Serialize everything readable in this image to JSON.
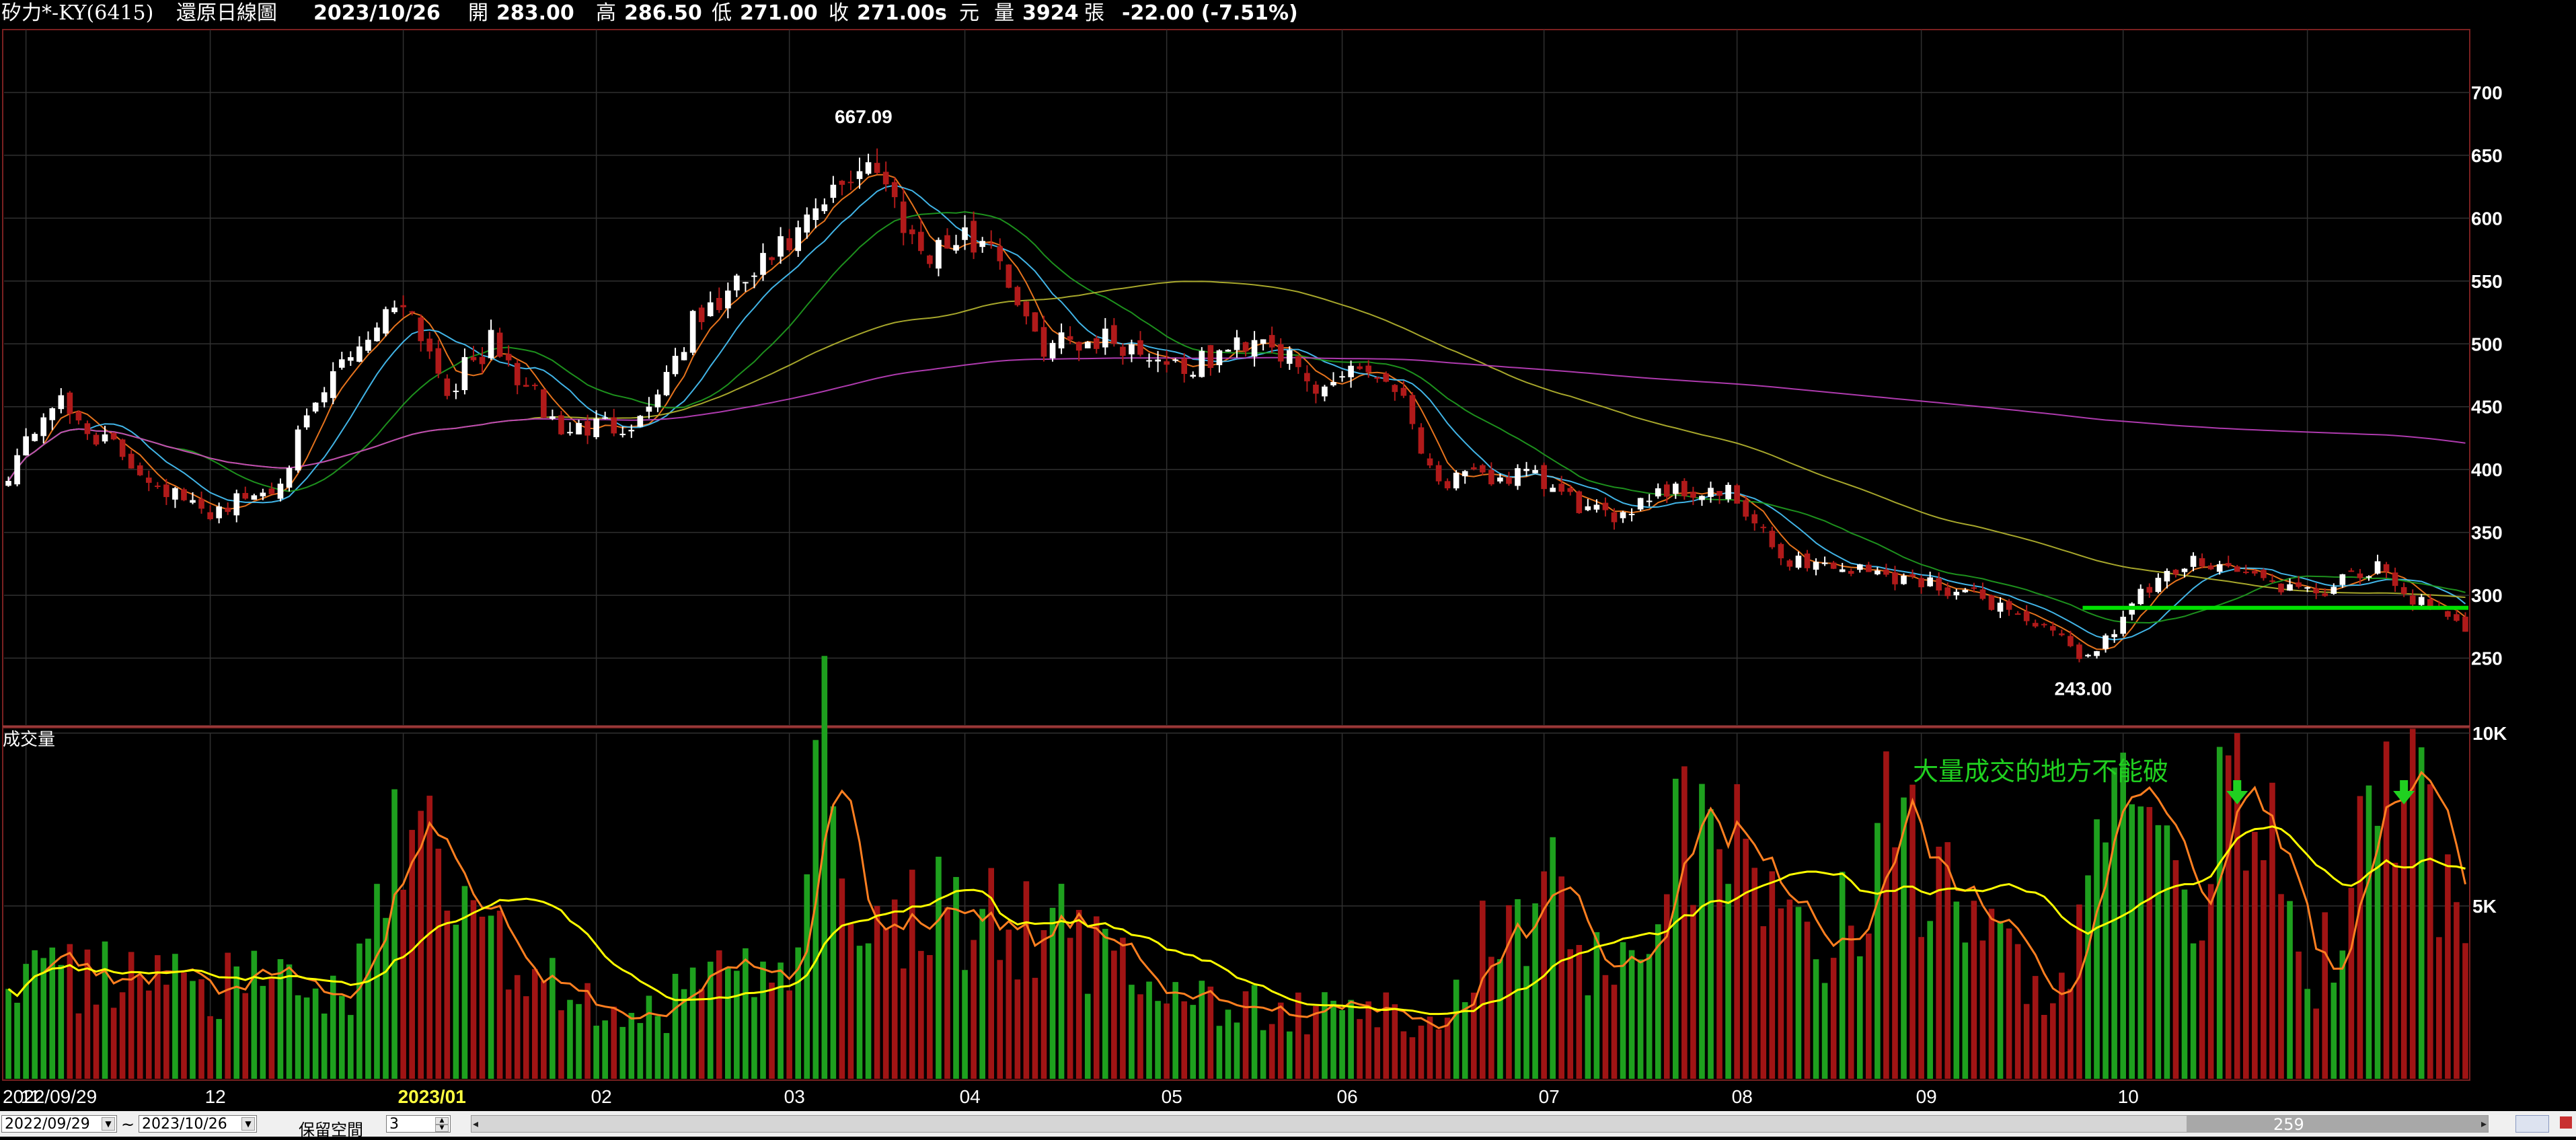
{
  "header": {
    "stock": "矽力*-KY(6415)",
    "chart_name": "還原日線圖",
    "date": "2023/10/26",
    "open_label": "開",
    "open": "283.00",
    "high_label": "高",
    "high": "286.50",
    "low_label": "低",
    "low": "271.00",
    "close_label": "收",
    "close": "271.00",
    "close_flag": "s",
    "unit": "元",
    "volume_label": "量",
    "volume": "3924",
    "volume_unit": "張",
    "change": "-22.00 (-7.51%)"
  },
  "volume_panel": {
    "title": "成交量",
    "annotation": "大量成交的地方不能破"
  },
  "footer": {
    "start_date": "2022/09/29",
    "tilde": "~",
    "end_date": "2023/10/26",
    "keep_space_label": "保留空間",
    "keep_space_value": "3",
    "bar_count": "259"
  },
  "colors": {
    "background": "#000000",
    "up": "#ffffff",
    "down": "#b01a1a",
    "volume_up": "#1ea01e",
    "volume_down": "#a01414",
    "ma_short": "#ff7f20",
    "ma_mid": "#48c8ff",
    "ma_long": "#20a020",
    "ma_quarter": "#b8b830",
    "ma_year": "#c040c0",
    "support_line": "#00e000",
    "vol_ma_short": "#ff7f20",
    "vol_ma_long": "#ffff00"
  },
  "chart_data": [
    {
      "type": "candlestick",
      "title": "",
      "x_ticks": [
        "2022/09/29",
        "11",
        "12",
        "2023/01",
        "02",
        "03",
        "04",
        "05",
        "06",
        "07",
        "08",
        "09",
        "10"
      ],
      "y_ticks": [
        250,
        300,
        350,
        400,
        450,
        500,
        550,
        600,
        650,
        700
      ],
      "ylim": [
        200,
        750
      ],
      "annotations": [
        {
          "text": "667.09",
          "date": "2023/02/14",
          "value": 667.09
        },
        {
          "text": "243.00",
          "date": "2023/08/28",
          "value": 243.0
        }
      ],
      "support_line": {
        "value": 290,
        "from": "2023/08/28",
        "to": "2023/10/26"
      },
      "anchors": [
        {
          "date": "2022/09/29",
          "close": 400
        },
        {
          "date": "2022/10/06",
          "close": 455
        },
        {
          "date": "2022/10/20",
          "close": 400
        },
        {
          "date": "2022/10/31",
          "close": 365
        },
        {
          "date": "2022/11/10",
          "close": 385
        },
        {
          "date": "2022/11/22",
          "close": 485
        },
        {
          "date": "2022/12/01",
          "close": 540
        },
        {
          "date": "2022/12/08",
          "close": 465
        },
        {
          "date": "2022/12/15",
          "close": 500
        },
        {
          "date": "2022/12/27",
          "close": 430
        },
        {
          "date": "2023/01/09",
          "close": 440
        },
        {
          "date": "2023/01/17",
          "close": 515
        },
        {
          "date": "2023/02/02",
          "close": 585
        },
        {
          "date": "2023/02/14",
          "close": 650
        },
        {
          "date": "2023/02/22",
          "close": 575
        },
        {
          "date": "2023/03/06",
          "close": 585
        },
        {
          "date": "2023/03/13",
          "close": 500
        },
        {
          "date": "2023/03/23",
          "close": 505
        },
        {
          "date": "2023/04/06",
          "close": 480
        },
        {
          "date": "2023/04/18",
          "close": 510
        },
        {
          "date": "2023/04/26",
          "close": 460
        },
        {
          "date": "2023/05/02",
          "close": 485
        },
        {
          "date": "2023/05/09",
          "close": 470
        },
        {
          "date": "2023/05/16",
          "close": 390
        },
        {
          "date": "2023/05/30",
          "close": 395
        },
        {
          "date": "2023/06/12",
          "close": 360
        },
        {
          "date": "2023/06/20",
          "close": 385
        },
        {
          "date": "2023/06/30",
          "close": 380
        },
        {
          "date": "2023/07/10",
          "close": 330
        },
        {
          "date": "2023/07/21",
          "close": 320
        },
        {
          "date": "2023/08/02",
          "close": 310
        },
        {
          "date": "2023/08/15",
          "close": 290
        },
        {
          "date": "2023/08/28",
          "close": 250
        },
        {
          "date": "2023/09/05",
          "close": 300
        },
        {
          "date": "2023/09/14",
          "close": 330
        },
        {
          "date": "2023/09/22",
          "close": 315
        },
        {
          "date": "2023/10/02",
          "close": 300
        },
        {
          "date": "2023/10/12",
          "close": 320
        },
        {
          "date": "2023/10/19",
          "close": 293
        },
        {
          "date": "2023/10/26",
          "close": 271
        }
      ],
      "last_bar": {
        "date": "2023/10/26",
        "open": 283.0,
        "high": 286.5,
        "low": 271.0,
        "close": 271.0
      }
    },
    {
      "type": "bar",
      "title": "成交量",
      "y_ticks": [
        "5K",
        "10K"
      ],
      "ylim": [
        0,
        10000
      ],
      "anchors": [
        {
          "date": "2022/09/29",
          "volume": 2600
        },
        {
          "date": "2022/10/20",
          "volume": 3000
        },
        {
          "date": "2022/11/22",
          "volume": 2400
        },
        {
          "date": "2022/12/02",
          "volume": 7200
        },
        {
          "date": "2022/12/20",
          "volume": 3000
        },
        {
          "date": "2023/01/05",
          "volume": 1500
        },
        {
          "date": "2023/02/02",
          "volume": 3800
        },
        {
          "date": "2023/02/06",
          "volume": 9800
        },
        {
          "date": "2023/02/15",
          "volume": 5000
        },
        {
          "date": "2023/03/14",
          "volume": 4300
        },
        {
          "date": "2023/04/12",
          "volume": 2000
        },
        {
          "date": "2023/05/15",
          "volume": 1800
        },
        {
          "date": "2023/06/01",
          "volume": 6000
        },
        {
          "date": "2023/06/12",
          "volume": 3000
        },
        {
          "date": "2023/06/28",
          "volume": 7800
        },
        {
          "date": "2023/07/18",
          "volume": 3500
        },
        {
          "date": "2023/07/25",
          "volume": 7400
        },
        {
          "date": "2023/08/10",
          "volume": 4000
        },
        {
          "date": "2023/08/24",
          "volume": 2600
        },
        {
          "date": "2023/08/31",
          "volume": 9000
        },
        {
          "date": "2023/09/14",
          "volume": 4000
        },
        {
          "date": "2023/09/20",
          "volume": 10000
        },
        {
          "date": "2023/10/02",
          "volume": 2600
        },
        {
          "date": "2023/10/17",
          "volume": 8600
        },
        {
          "date": "2023/10/26",
          "volume": 3924
        }
      ],
      "annotations": [
        {
          "text": "大量成交的地方不能破",
          "date": "2023/09/14"
        },
        {
          "marker": "down-arrow",
          "date": "2023/09/20"
        },
        {
          "marker": "down-arrow",
          "date": "2023/10/17"
        }
      ]
    }
  ]
}
